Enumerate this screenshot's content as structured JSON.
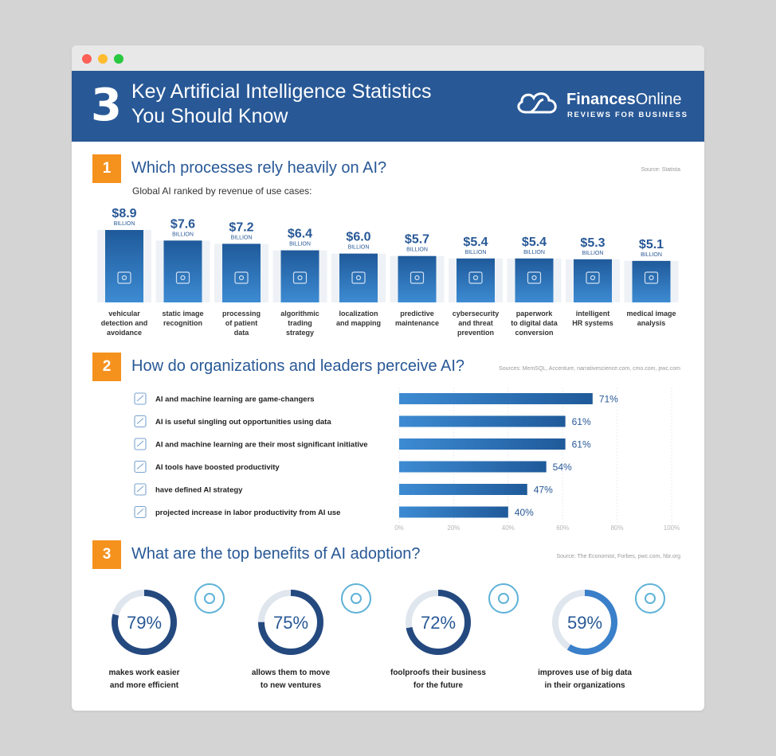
{
  "header": {
    "number": "3",
    "title": "Key Artificial Intelligence Statistics You Should Know",
    "logo_name_bold": "Finances",
    "logo_name_rest": "Online",
    "logo_tagline": "REVIEWS FOR BUSINESS"
  },
  "section1": {
    "badge": "1",
    "title": "Which processes rely heavily on AI?",
    "source": "Source: Statista",
    "subtitle": "Global AI ranked by revenue of use cases:"
  },
  "section2": {
    "badge": "2",
    "title": "How do organizations and leaders perceive AI?",
    "source": "Sources: MemSQL, Accenture, narrativescience.com, cmo.com, pwc.com"
  },
  "section3": {
    "badge": "3",
    "title": "What are the top benefits of AI adoption?",
    "source": "Source: The Economist, Forbes, pwc.com, hbr.org"
  },
  "colors": {
    "header": "#285896",
    "accent": "#f5921e",
    "bar_dark": "#1f5a9a",
    "bar_light": "#3d8bd3",
    "ring_bg": "#dfe6ee"
  },
  "chart_data": [
    {
      "type": "bar",
      "title": "Which processes rely heavily on AI?",
      "subtitle": "Global AI ranked by revenue of use cases:",
      "categories": [
        "vehicular detection and avoidance",
        "static image recognition",
        "processing of patient data",
        "algorithmic trading strategy",
        "localization and mapping",
        "predictive maintenance",
        "cybersecurity and threat prevention",
        "paperwork to digital data conversion",
        "intelligent HR systems",
        "medical image analysis"
      ],
      "category_lines": [
        [
          "vehicular",
          "detection and",
          "avoidance"
        ],
        [
          "static image",
          "recognition"
        ],
        [
          "processing",
          "of patient",
          "data"
        ],
        [
          "algorithmic",
          "trading",
          "strategy"
        ],
        [
          "localization",
          "and mapping"
        ],
        [
          "predictive",
          "maintenance"
        ],
        [
          "cybersecurity",
          "and threat",
          "prevention"
        ],
        [
          "paperwork",
          "to digital data",
          "conversion"
        ],
        [
          "intelligent",
          "HR systems"
        ],
        [
          "medical image",
          "analysis"
        ]
      ],
      "values": [
        8.9,
        7.6,
        7.2,
        6.4,
        6.0,
        5.7,
        5.4,
        5.4,
        5.3,
        5.1
      ],
      "value_labels": [
        "$8.9",
        "$7.6",
        "$7.2",
        "$6.4",
        "$6.0",
        "$5.7",
        "$5.4",
        "$5.4",
        "$5.3",
        "$5.1"
      ],
      "unit_label": "BILLION",
      "icons": [
        "car-icon",
        "image-icon",
        "patient-record-icon",
        "trading-chart-icon",
        "location-pin-icon",
        "gears-icon",
        "padlock-icon",
        "document-icon",
        "people-network-icon",
        "medical-monitor-icon"
      ]
    },
    {
      "type": "bar",
      "orientation": "horizontal",
      "title": "How do organizations and leaders perceive AI?",
      "categories": [
        "AI and machine learning are game-changers",
        "AI is useful singling out opportunities using data",
        "AI and machine learning are their most significant initiative",
        "AI tools have boosted productivity",
        "have defined AI strategy",
        "projected increase in labor productivity from AI use"
      ],
      "values": [
        71,
        61,
        61,
        54,
        47,
        40
      ],
      "value_labels": [
        "71%",
        "61%",
        "61%",
        "54%",
        "47%",
        "40%"
      ],
      "icons": [
        "trophy-icon",
        "data-search-icon",
        "brain-icon",
        "growth-chart-icon",
        "strategy-icon",
        "productivity-chart-icon"
      ],
      "xlim": [
        0,
        100
      ],
      "ticks": [
        "0%",
        "20%",
        "40%",
        "60%",
        "80%",
        "100%"
      ],
      "grid": true
    },
    {
      "type": "pie",
      "style": "donut",
      "title": "What are the top benefits of AI adoption?",
      "categories": [
        "makes work easier and more efficient",
        "allows them to move to new ventures",
        "foolproofs their business for the future",
        "improves use of big data in their organizations"
      ],
      "category_lines": [
        [
          "makes work easier",
          "and more efficient"
        ],
        [
          "allows them to move",
          "to new ventures"
        ],
        [
          "foolproofs their business",
          "for the future"
        ],
        [
          "improves use of big data",
          "in their organizations"
        ]
      ],
      "values": [
        79,
        75,
        72,
        59
      ],
      "value_labels": [
        "79%",
        "75%",
        "72%",
        "59%"
      ],
      "icons": [
        "speedometer-icon",
        "rocket-icon",
        "shield-check-icon",
        "network-icon"
      ]
    }
  ]
}
